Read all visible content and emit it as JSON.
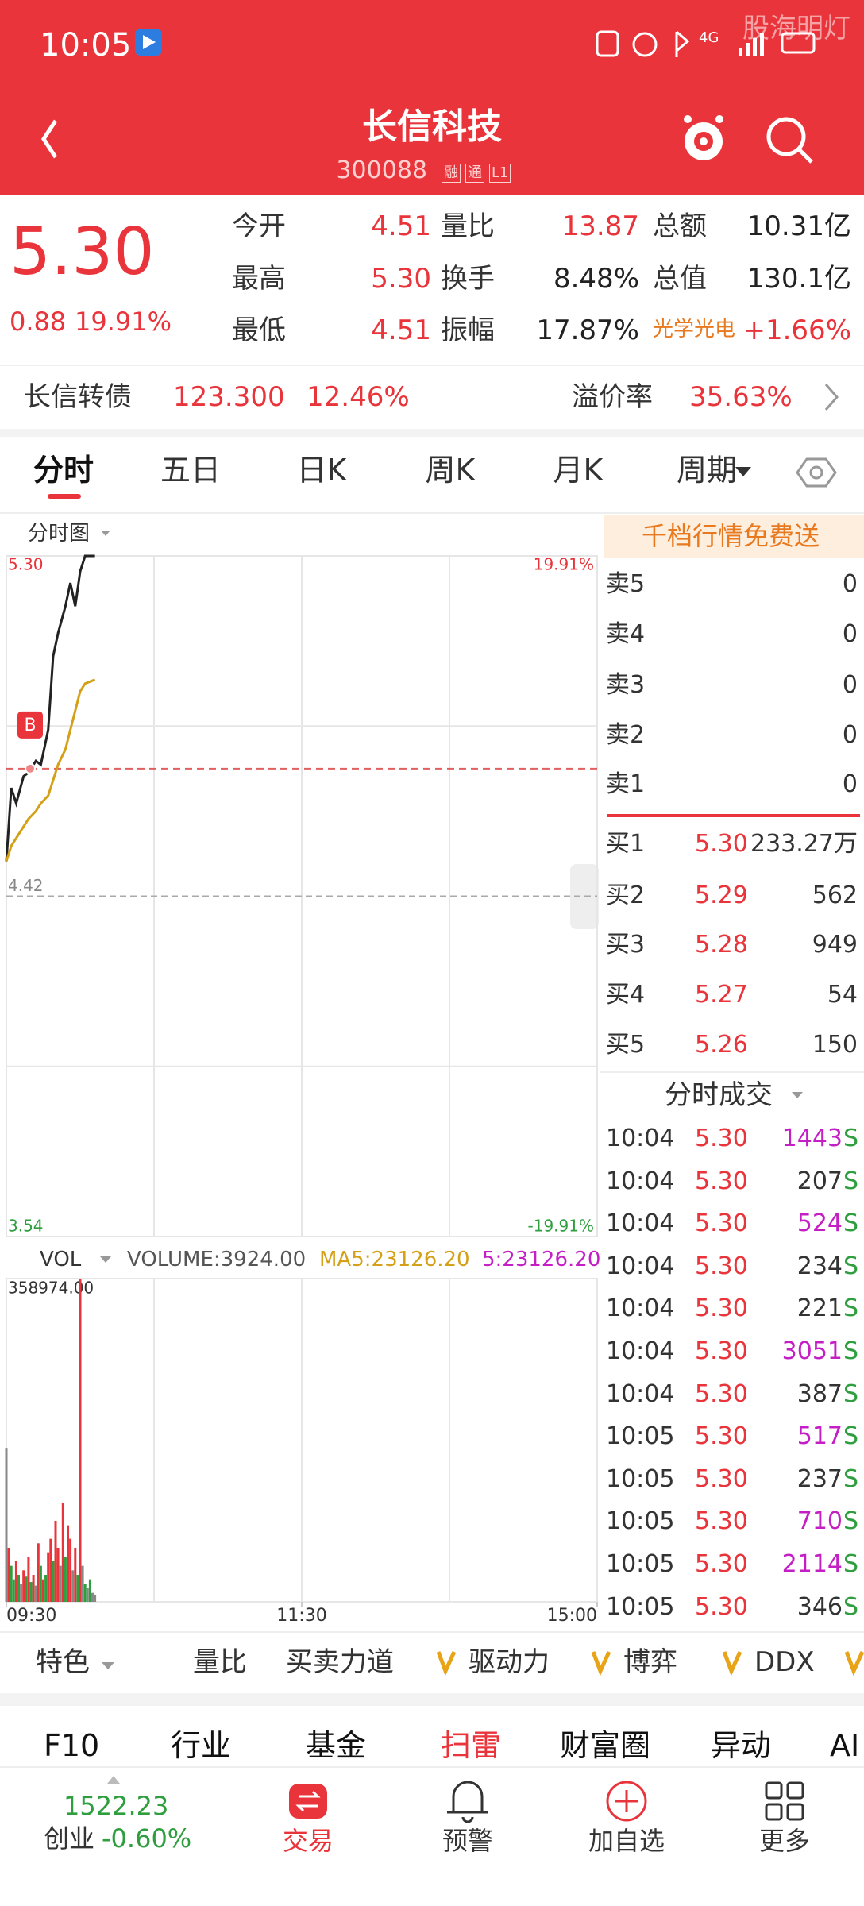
{
  "status_bar": {
    "time": "10:05",
    "network": "4G",
    "watermark": "股海明灯"
  },
  "header": {
    "title": "长信科技",
    "code": "300088",
    "tags": [
      "融",
      "通",
      "L1"
    ]
  },
  "quote": {
    "price": "5.30",
    "change": "0.88",
    "change_pct": "19.91%",
    "fields": [
      {
        "label": "今开",
        "value": "4.51",
        "color": "#e8343a"
      },
      {
        "label": "量比",
        "value": "13.87",
        "color": "#e8343a"
      },
      {
        "label": "总额",
        "value": "10.31亿",
        "color": "#222"
      },
      {
        "label": "最高",
        "value": "5.30",
        "color": "#e8343a"
      },
      {
        "label": "换手",
        "value": "8.48%",
        "color": "#222"
      },
      {
        "label": "总值",
        "value": "130.1亿",
        "color": "#222"
      },
      {
        "label": "最低",
        "value": "4.51",
        "color": "#e8343a"
      },
      {
        "label": "振幅",
        "value": "17.87%",
        "color": "#222"
      },
      {
        "label": "光学光电",
        "value": "+1.66%",
        "color": "#e8343a",
        "label_color": "#e8791f"
      }
    ]
  },
  "bond": {
    "name": "长信转债",
    "price": "123.300",
    "pct": "12.46%",
    "premium_label": "溢价率",
    "premium": "35.63%"
  },
  "tabs": [
    "分时",
    "五日",
    "日K",
    "周K",
    "月K",
    "周期"
  ],
  "chart_label": "分时图",
  "chart_data": [
    {
      "type": "line",
      "x": [
        0,
        2,
        4,
        7,
        9,
        12,
        14,
        17,
        19,
        21,
        24,
        26,
        28,
        30,
        32,
        36
      ],
      "xlim": [
        0,
        240
      ],
      "ylim": [
        3.54,
        5.3
      ],
      "yticks": [
        {
          "value": 5.3,
          "label": "5.30"
        },
        4.42,
        3.54
      ],
      "ytick_colors": [
        "#e8343a",
        "#888",
        "#2e9e3e"
      ],
      "y2lim": [
        -19.91,
        19.91
      ],
      "y2ticks": [
        {
          "value": 19.91,
          "label": "19.91%"
        },
        {
          "value": -19.91,
          "label": "-19.91%"
        }
      ],
      "y2tick_colors": [
        "#e8343a",
        "#2e9e3e"
      ],
      "series": [
        {
          "color": "#222",
          "values": [
            4.51,
            4.7,
            4.66,
            4.73,
            4.74,
            4.77,
            4.76,
            4.85,
            5.04,
            5.1,
            5.17,
            5.23,
            5.17,
            5.26,
            5.3,
            5.3
          ]
        },
        {
          "color": "#d4a017",
          "values": [
            4.51,
            4.55,
            4.57,
            4.6,
            4.62,
            4.64,
            4.66,
            4.68,
            4.72,
            4.76,
            4.8,
            4.85,
            4.9,
            4.95,
            4.97,
            4.98
          ]
        }
      ],
      "marker": {
        "label": "B",
        "x": 9,
        "y": 4.75
      }
    },
    {
      "type": "bar",
      "indicator": "VOL",
      "volume_label": "VOLUME:3924.00",
      "ma5_label": "MA5:23126.20",
      "ma5b_label": "5:23126.20",
      "x": [
        0,
        1,
        2,
        3,
        4,
        5,
        6,
        7,
        8,
        9,
        10,
        11,
        12,
        13,
        14,
        15,
        16,
        17,
        18,
        19,
        20,
        21,
        22,
        23,
        24,
        25,
        26,
        27,
        28,
        29,
        30,
        31,
        32,
        33,
        34,
        35,
        36
      ],
      "values": [
        171000,
        60000,
        40000,
        25000,
        45000,
        30000,
        20000,
        35000,
        28000,
        50000,
        22000,
        30000,
        18000,
        65000,
        40000,
        25000,
        30000,
        55000,
        70000,
        45000,
        90000,
        60000,
        40000,
        110000,
        50000,
        85000,
        70000,
        35000,
        60000,
        30000,
        358974,
        40000,
        20000,
        15000,
        25000,
        10000,
        8000
      ],
      "colors": [
        "#888",
        "#e8343a",
        "#2e9e3e",
        "#2e9e3e",
        "#e8343a",
        "#2e9e3e",
        "#888",
        "#e8343a",
        "#2e9e3e",
        "#e8343a",
        "#2e9e3e",
        "#e8343a",
        "#888",
        "#e8343a",
        "#2e9e3e",
        "#e8343a",
        "#2e9e3e",
        "#e8343a",
        "#e8343a",
        "#2e9e3e",
        "#e8343a",
        "#e8343a",
        "#888",
        "#e8343a",
        "#2e9e3e",
        "#e8343a",
        "#e8343a",
        "#888",
        "#e8343a",
        "#2e9e3e",
        "#e8343a",
        "#888",
        "#2e9e3e",
        "#888",
        "#2e9e3e",
        "#888",
        "#888"
      ],
      "ylim": [
        0,
        358974
      ],
      "yticks": [
        {
          "value": 358974,
          "label": "358974.00"
        }
      ],
      "xlim": [
        0,
        240
      ],
      "xticks": [
        {
          "value": 0,
          "label": "09:30"
        },
        {
          "value": 120,
          "label": "11:30"
        },
        {
          "value": 240,
          "label": "15:00"
        }
      ]
    }
  ],
  "order_book": {
    "banner": "千档行情免费送",
    "asks": [
      {
        "label": "卖5",
        "qty": "0"
      },
      {
        "label": "卖4",
        "qty": "0"
      },
      {
        "label": "卖3",
        "qty": "0"
      },
      {
        "label": "卖2",
        "qty": "0"
      },
      {
        "label": "卖1",
        "qty": "0"
      }
    ],
    "bids": [
      {
        "label": "买1",
        "price": "5.30",
        "qty": "233.27万"
      },
      {
        "label": "买2",
        "price": "5.29",
        "qty": "562"
      },
      {
        "label": "买3",
        "price": "5.28",
        "qty": "949"
      },
      {
        "label": "买4",
        "price": "5.27",
        "qty": "54"
      },
      {
        "label": "买5",
        "price": "5.26",
        "qty": "150"
      }
    ],
    "trades_title": "分时成交",
    "trades": [
      {
        "time": "10:04",
        "price": "5.30",
        "volume": "1443",
        "side": "S",
        "color": "#c41fc4"
      },
      {
        "time": "10:04",
        "price": "5.30",
        "volume": "207",
        "side": "S",
        "color": "#333"
      },
      {
        "time": "10:04",
        "price": "5.30",
        "volume": "524",
        "side": "S",
        "color": "#c41fc4"
      },
      {
        "time": "10:04",
        "price": "5.30",
        "volume": "234",
        "side": "S",
        "color": "#333"
      },
      {
        "time": "10:04",
        "price": "5.30",
        "volume": "221",
        "side": "S",
        "color": "#333"
      },
      {
        "time": "10:04",
        "price": "5.30",
        "volume": "3051",
        "side": "S",
        "color": "#c41fc4"
      },
      {
        "time": "10:04",
        "price": "5.30",
        "volume": "387",
        "side": "S",
        "color": "#333"
      },
      {
        "time": "10:05",
        "price": "5.30",
        "volume": "517",
        "side": "S",
        "color": "#c41fc4"
      },
      {
        "time": "10:05",
        "price": "5.30",
        "volume": "237",
        "side": "S",
        "color": "#333"
      },
      {
        "time": "10:05",
        "price": "5.30",
        "volume": "710",
        "side": "S",
        "color": "#c41fc4"
      },
      {
        "time": "10:05",
        "price": "5.30",
        "volume": "2114",
        "side": "S",
        "color": "#c41fc4"
      },
      {
        "time": "10:05",
        "price": "5.30",
        "volume": "346",
        "side": "S",
        "color": "#333"
      }
    ]
  },
  "indicators": [
    "特色",
    "量比",
    "买卖力道",
    "驱动力",
    "博弈",
    "DDX"
  ],
  "sub_tabs": [
    "F10",
    "行业",
    "基金",
    "扫雷",
    "财富圈",
    "异动",
    "AI"
  ],
  "bottom_nav": {
    "index_value": "1522.23",
    "index_name": "创业",
    "index_change": "-0.60%",
    "items": [
      "交易",
      "预警",
      "加自选",
      "更多"
    ]
  }
}
